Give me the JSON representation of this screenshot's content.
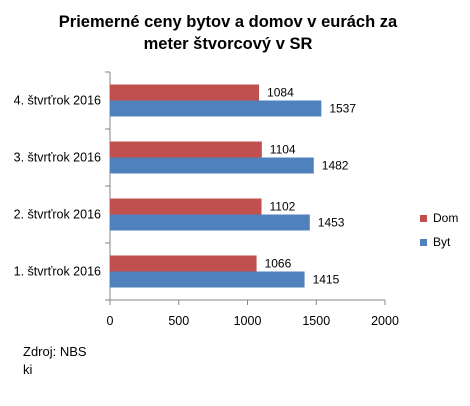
{
  "chart_data": {
    "type": "bar",
    "orientation": "horizontal",
    "title_lines": [
      "Priemerné ceny bytov a domov v eurách za",
      "meter štvorcový v  SR"
    ],
    "categories": [
      "1. štvrťrok 2016",
      "2. štvrťrok 2016",
      "3. štvrťrok 2016",
      "4. štvrťrok 2016"
    ],
    "series": [
      {
        "name": "Dom",
        "color": "#C0504D",
        "values": [
          1066,
          1102,
          1104,
          1084
        ]
      },
      {
        "name": "Byt",
        "color": "#4F81BD",
        "values": [
          1415,
          1453,
          1482,
          1537
        ]
      }
    ],
    "xlim": [
      0,
      2000
    ],
    "x_ticks": [
      "0",
      "500",
      "1000",
      "1500",
      "2000"
    ],
    "grid": false,
    "legend_position": "right",
    "data_labels": true
  },
  "source": {
    "line1": "Zdroj: NBS",
    "line2": "ki"
  }
}
